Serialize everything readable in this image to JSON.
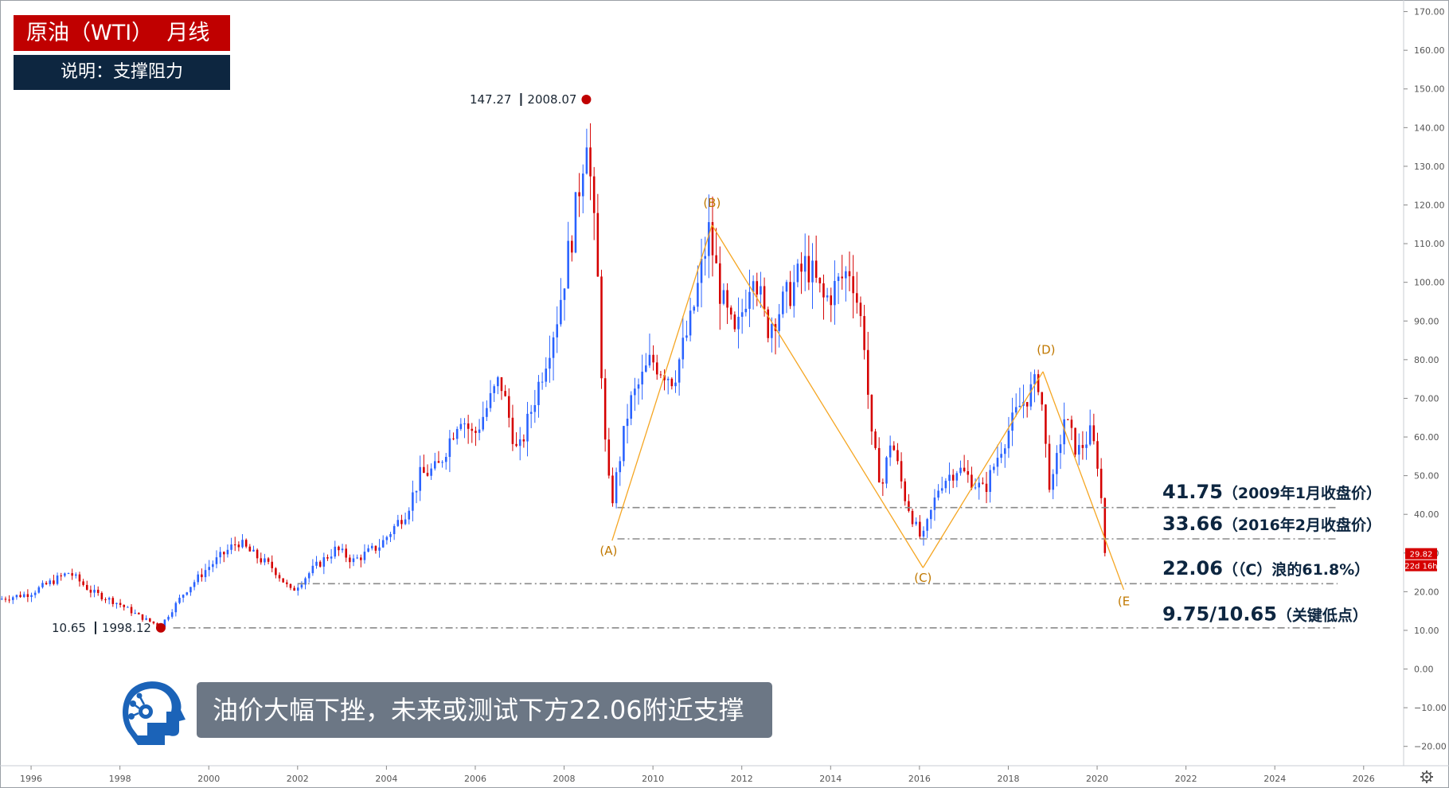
{
  "title": "原油（WTI）  月线",
  "subtitle": "说明：支撑阻力",
  "caption": "油价大幅下挫，未来或测试下方22.06附近支撑",
  "logo_icon": "robot-head-icon",
  "colors": {
    "up": "#2962ff",
    "down": "#d50000",
    "wave": "#f5a623",
    "wave_label": "#c07800",
    "support": "#8a8a8a",
    "title_bg": "#c00000",
    "subtitle_bg": "#0d2640",
    "caption_bg": "#6c7785",
    "price_badge": "#d50000"
  },
  "chart_data": {
    "type": "candlestick",
    "interval": "monthly",
    "x_ticks": [
      "1996",
      "1998",
      "2000",
      "2002",
      "2004",
      "2006",
      "2008",
      "2010",
      "2012",
      "2014",
      "2016",
      "2018",
      "2020",
      "2022",
      "2024",
      "2026"
    ],
    "y_ticks": [
      "170.00",
      "160.00",
      "150.00",
      "140.00",
      "130.00",
      "120.00",
      "110.00",
      "100.00",
      "90.00",
      "80.00",
      "70.00",
      "60.00",
      "50.00",
      "40.00",
      "30.00",
      "20.00",
      "10.00",
      "0.00",
      "−10.00",
      "−20.00"
    ],
    "ylim": [
      -25,
      173
    ],
    "xlim": [
      1995.3,
      2026.9
    ],
    "price_path": [
      [
        1995.3,
        18
      ],
      [
        1996.0,
        19.5
      ],
      [
        1996.9,
        25
      ],
      [
        1997.4,
        20
      ],
      [
        1998.0,
        17
      ],
      [
        1998.5,
        13.5
      ],
      [
        1998.95,
        11
      ],
      [
        1999.5,
        20
      ],
      [
        2000.0,
        26
      ],
      [
        2000.7,
        33
      ],
      [
        2001.0,
        30
      ],
      [
        2001.5,
        26
      ],
      [
        2001.9,
        20
      ],
      [
        2002.4,
        26
      ],
      [
        2002.9,
        31
      ],
      [
        2003.3,
        28
      ],
      [
        2003.9,
        32
      ],
      [
        2004.5,
        41
      ],
      [
        2004.8,
        50
      ],
      [
        2005.2,
        52
      ],
      [
        2005.7,
        66
      ],
      [
        2006.0,
        60
      ],
      [
        2006.6,
        75
      ],
      [
        2007.0,
        55
      ],
      [
        2007.5,
        75
      ],
      [
        2007.9,
        92
      ],
      [
        2008.3,
        118
      ],
      [
        2008.55,
        140
      ],
      [
        2008.8,
        100
      ],
      [
        2008.95,
        60
      ],
      [
        2009.1,
        42
      ],
      [
        2009.5,
        68
      ],
      [
        2010.0,
        80
      ],
      [
        2010.5,
        75
      ],
      [
        2010.9,
        90
      ],
      [
        2011.3,
        113
      ],
      [
        2011.6,
        95
      ],
      [
        2011.9,
        85
      ],
      [
        2012.3,
        105
      ],
      [
        2012.6,
        88
      ],
      [
        2013.0,
        95
      ],
      [
        2013.5,
        105
      ],
      [
        2013.9,
        95
      ],
      [
        2014.5,
        104
      ],
      [
        2014.8,
        85
      ],
      [
        2014.95,
        60
      ],
      [
        2015.2,
        47
      ],
      [
        2015.4,
        60
      ],
      [
        2015.7,
        45
      ],
      [
        2015.95,
        37
      ],
      [
        2016.1,
        33
      ],
      [
        2016.5,
        48
      ],
      [
        2016.9,
        52
      ],
      [
        2017.5,
        46
      ],
      [
        2017.9,
        58
      ],
      [
        2018.3,
        68
      ],
      [
        2018.75,
        75
      ],
      [
        2018.9,
        55
      ],
      [
        2019.0,
        45
      ],
      [
        2019.3,
        65
      ],
      [
        2019.6,
        56
      ],
      [
        2019.9,
        61
      ],
      [
        2020.1,
        51
      ],
      [
        2020.2,
        30
      ]
    ],
    "series": [
      {
        "name": "(A)",
        "points": [
          [
            2009.08,
            33.2
          ],
          [
            2011.33,
            114.8
          ]
        ]
      },
      {
        "name": "(B)",
        "points": [
          [
            2011.33,
            114.8
          ],
          [
            2016.08,
            26.2
          ]
        ]
      },
      {
        "name": "(C)",
        "points": [
          [
            2016.08,
            26.2
          ],
          [
            2018.78,
            76.9
          ]
        ]
      },
      {
        "name": "(D)",
        "points": [
          [
            2018.78,
            76.9
          ],
          [
            2020.6,
            20.5
          ]
        ]
      }
    ],
    "wave_labels": [
      {
        "label": "(A)",
        "x": 2009.0,
        "y": 29.5
      },
      {
        "label": "(B)",
        "x": 2011.33,
        "y": 119.5
      },
      {
        "label": "(C)",
        "x": 2016.08,
        "y": 22.5
      },
      {
        "label": "(D)",
        "x": 2018.85,
        "y": 81.5
      },
      {
        "label": "(E",
        "x": 2020.6,
        "y": 16.5
      }
    ],
    "support_lines": [
      {
        "value": 41.75,
        "x_start": 2009.2,
        "label_value": "41.75",
        "label_note": "（2009年1月收盘价）",
        "label_y": 46
      },
      {
        "value": 33.66,
        "x_start": 2009.2,
        "label_value": "33.66",
        "label_note": "（2016年2月收盘价）",
        "label_y": 37.8
      },
      {
        "value": 22.06,
        "x_start": 2002.0,
        "label_value": "22.06",
        "label_note": "（（C）浪的61.8%）",
        "label_y": 26.2
      },
      {
        "value": 10.65,
        "x_start": 1999.2,
        "label_value": "9.75/10.65",
        "label_note": "（关键低点）",
        "label_y": 14.4
      }
    ],
    "annotations": [
      {
        "value": "147.27",
        "date": "2008.07",
        "x": 2008.5,
        "y": 147.27
      },
      {
        "value": "10.65",
        "date": "1998.12",
        "x": 1998.92,
        "y": 10.65
      }
    ],
    "last_price": "29.82",
    "countdown": "22d 16h"
  }
}
